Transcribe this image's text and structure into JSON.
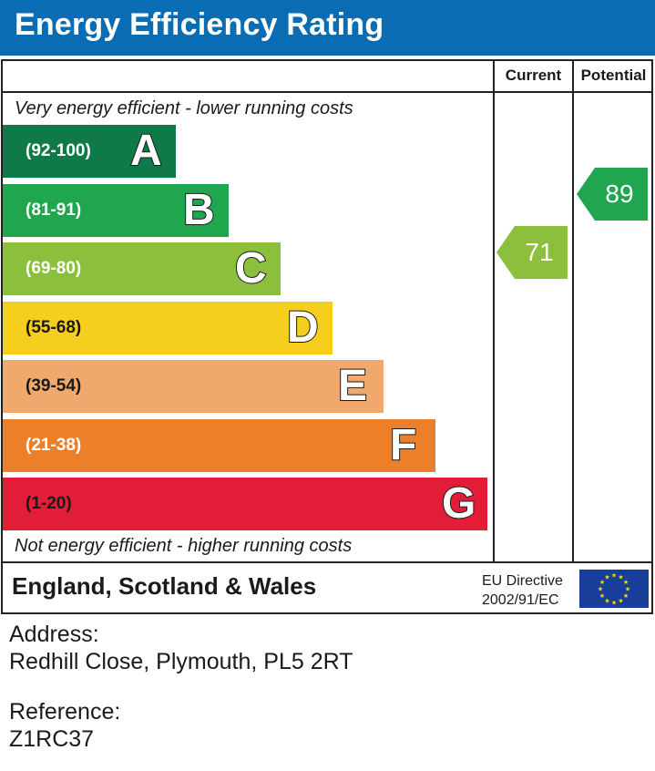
{
  "header": {
    "title": "Energy Efficiency Rating",
    "color": "#0a6db4"
  },
  "columns": {
    "current": "Current",
    "potential": "Potential"
  },
  "captions": {
    "top": "Very energy efficient - lower running costs",
    "bottom": "Not energy efficient - higher running costs"
  },
  "chart_data": {
    "type": "bar",
    "title": "Energy Efficiency Rating",
    "bands": [
      {
        "letter": "A",
        "range": "(92-100)",
        "min": 92,
        "max": 100,
        "color": "#0f7a48"
      },
      {
        "letter": "B",
        "range": "(81-91)",
        "min": 81,
        "max": 91,
        "color": "#21a650"
      },
      {
        "letter": "C",
        "range": "(69-80)",
        "min": 69,
        "max": 80,
        "color": "#8cbf3c"
      },
      {
        "letter": "D",
        "range": "(55-68)",
        "min": 55,
        "max": 68,
        "color": "#f6cf1e"
      },
      {
        "letter": "E",
        "range": "(39-54)",
        "min": 39,
        "max": 54,
        "color": "#f0a86c"
      },
      {
        "letter": "F",
        "range": "(21-38)",
        "min": 21,
        "max": 38,
        "color": "#ec7f2a"
      },
      {
        "letter": "G",
        "range": "(1-20)",
        "min": 1,
        "max": 20,
        "color": "#e21d38"
      }
    ],
    "current": {
      "value": 71,
      "band": "C",
      "color": "#8cbf3c"
    },
    "potential": {
      "value": 89,
      "band": "B",
      "color": "#21a650"
    }
  },
  "footer": {
    "region": "England, Scotland & Wales",
    "directive_line1": "EU Directive",
    "directive_line2": "2002/91/EC"
  },
  "address": {
    "label": "Address:",
    "value": "Redhill Close, Plymouth, PL5 2RT"
  },
  "reference": {
    "label": "Reference:",
    "value": "Z1RC37"
  }
}
